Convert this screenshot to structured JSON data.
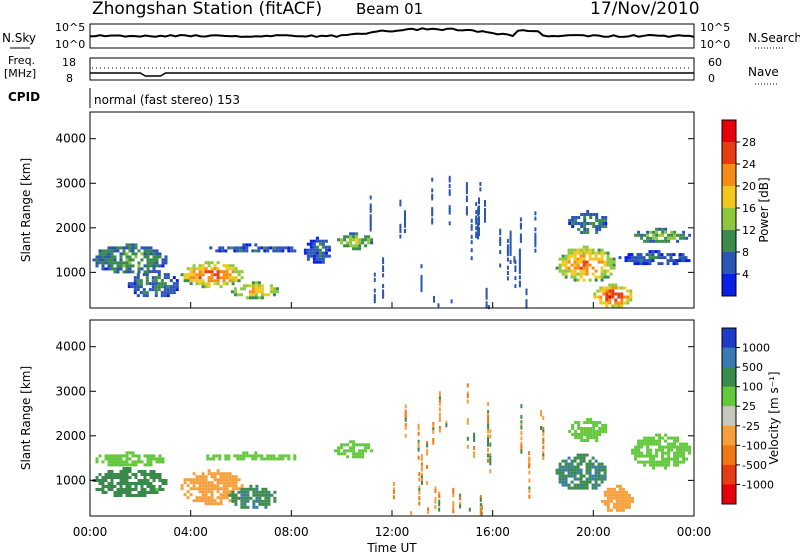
{
  "header": {
    "station": "Zhongshan Station (fitACF)",
    "beam": "Beam 01",
    "date": "17/Nov/2010"
  },
  "top_panels": {
    "nsky_label": "N.Sky",
    "nsky_ticks": [
      "10^5",
      "10^0"
    ],
    "nsearch_label": "N.Search",
    "nsearch_ticks": [
      "10^5",
      "10^0"
    ],
    "freq_label": "Freq.",
    "freq_unit": "[MHz]",
    "freq_ticks": [
      "18",
      "8"
    ],
    "nave_label": "Nave",
    "nave_ticks": [
      "60",
      "0"
    ],
    "cpid_label": "CPID",
    "cpid_text": "normal (fast stereo) 153"
  },
  "chart_data": [
    {
      "type": "heatmap",
      "name": "power",
      "ylabel": "Slant Range [km]",
      "yticks": [
        "1000",
        "2000",
        "3000",
        "4000"
      ],
      "ylim": [
        200,
        4600
      ],
      "xlim": [
        0,
        24
      ],
      "colorbar_label": "Power [dB]",
      "colorbar_ticks": [
        "4",
        "8",
        "12",
        "16",
        "20",
        "24",
        "28"
      ],
      "colors": [
        "#0a1ee6",
        "#2a56b4",
        "#3a8a4c",
        "#8ec83c",
        "#f2c81e",
        "#f58c14",
        "#e63c14",
        "#e6000a"
      ],
      "blobs": [
        {
          "t0": 0.1,
          "t1": 3.0,
          "r0": 1000,
          "r1": 1650,
          "v": 10
        },
        {
          "t0": 1.5,
          "t1": 3.5,
          "r0": 450,
          "r1": 1050,
          "v": 8
        },
        {
          "t0": 3.6,
          "t1": 6.0,
          "r0": 700,
          "r1": 1250,
          "v": 22
        },
        {
          "t0": 5.6,
          "t1": 7.4,
          "r0": 450,
          "r1": 800,
          "v": 18
        },
        {
          "t0": 4.5,
          "t1": 8.2,
          "r0": 1450,
          "r1": 1650,
          "v": 6
        },
        {
          "t0": 9.7,
          "t1": 11.2,
          "r0": 1550,
          "r1": 1900,
          "v": 14
        },
        {
          "t0": 8.5,
          "t1": 9.5,
          "r0": 1200,
          "r1": 1800,
          "v": 6
        },
        {
          "t0": 18.5,
          "t1": 20.8,
          "r0": 800,
          "r1": 1600,
          "v": 20
        },
        {
          "t0": 20.0,
          "t1": 21.5,
          "r0": 250,
          "r1": 750,
          "v": 24
        },
        {
          "t0": 21.5,
          "t1": 23.8,
          "r0": 1700,
          "r1": 2000,
          "v": 12
        },
        {
          "t0": 21.0,
          "t1": 23.8,
          "r0": 1200,
          "r1": 1500,
          "v": 6
        },
        {
          "t0": 19.0,
          "t1": 20.5,
          "r0": 1900,
          "r1": 2400,
          "v": 9
        }
      ],
      "speckle": {
        "t0": 11.0,
        "t1": 18.0,
        "r0": 250,
        "r1": 3300,
        "v": 6
      }
    },
    {
      "type": "heatmap",
      "name": "velocity",
      "ylabel": "Slant Range [km]",
      "yticks": [
        "1000",
        "2000",
        "3000",
        "4000"
      ],
      "ylim": [
        200,
        4600
      ],
      "xlim": [
        0,
        24
      ],
      "xticks": [
        "00:00",
        "04:00",
        "08:00",
        "12:00",
        "16:00",
        "20:00",
        "00:00"
      ],
      "xlabel": "Time UT",
      "colorbar_label": "Velocity [m s⁻¹]",
      "colorbar_ticks": [
        "1000",
        "500",
        "100",
        "25",
        "-25",
        "-100",
        "-500",
        "-1000"
      ],
      "colors": [
        "#1e3cc8",
        "#3a7ab4",
        "#3a8a4c",
        "#64c83c",
        "#c8c8be",
        "#f5a03c",
        "#f07814",
        "#e63c14",
        "#e6000a"
      ],
      "blobs": [
        {
          "t0": 0.1,
          "t1": 3.0,
          "r0": 1350,
          "r1": 1650,
          "v": 0
        },
        {
          "t0": 0.1,
          "t1": 3.0,
          "r0": 650,
          "r1": 1300,
          "v": 60
        },
        {
          "t0": 3.6,
          "t1": 6.0,
          "r0": 500,
          "r1": 1250,
          "v": -300
        },
        {
          "t0": 5.5,
          "t1": 7.4,
          "r0": 400,
          "r1": 900,
          "v": 80
        },
        {
          "t0": 4.5,
          "t1": 8.2,
          "r0": 1450,
          "r1": 1650,
          "v": 0
        },
        {
          "t0": 9.7,
          "t1": 11.2,
          "r0": 1550,
          "r1": 1900,
          "v": 0
        },
        {
          "t0": 18.5,
          "t1": 20.5,
          "r0": 800,
          "r1": 1600,
          "v": 80
        },
        {
          "t0": 20.3,
          "t1": 21.5,
          "r0": 300,
          "r1": 900,
          "v": -300
        },
        {
          "t0": 21.5,
          "t1": 23.8,
          "r0": 1300,
          "r1": 2050,
          "v": 0
        },
        {
          "t0": 19.0,
          "t1": 20.5,
          "r0": 1900,
          "r1": 2400,
          "v": 0
        }
      ],
      "speckle": {
        "t0": 11.5,
        "t1": 18.0,
        "r0": 300,
        "r1": 3300,
        "v": -300
      }
    }
  ]
}
